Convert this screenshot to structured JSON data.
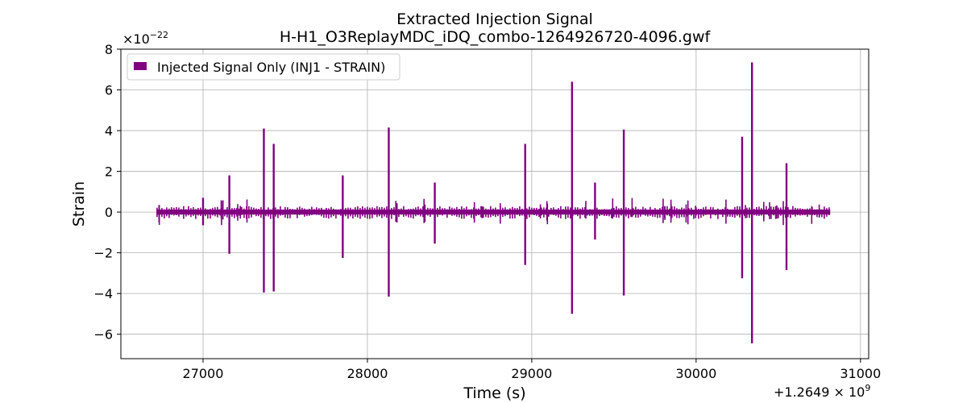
{
  "chart_data": {
    "type": "line",
    "title": "Extracted Injection Signal",
    "subtitle": "H-H1_O3ReplayMDC_iDQ_combo-1264926720-4096.gwf",
    "xlabel": "Time (s)",
    "ylabel": "Strain",
    "x_offset_label": "+1.2649 × 10^9",
    "y_scale_label": "×10^−22",
    "xlim": [
      26500,
      31050
    ],
    "ylim": [
      -7.2,
      8.0
    ],
    "x_ticks": [
      27000,
      28000,
      29000,
      30000,
      31000
    ],
    "x_tick_labels": [
      "27000",
      "28000",
      "29000",
      "30000",
      "31000"
    ],
    "y_ticks": [
      -6,
      -4,
      -2,
      0,
      2,
      4,
      6,
      8
    ],
    "y_tick_labels": [
      "−6",
      "−4",
      "−2",
      "0",
      "2",
      "4",
      "6",
      "8"
    ],
    "grid": true,
    "legend_position": "top-left",
    "color": "#800080",
    "series": [
      {
        "name": "Injected Signal Only (INJ1 - STRAIN)",
        "x_range": [
          26720,
          30816
        ],
        "baseline_noise": [
          -0.22,
          0.18
        ],
        "spikes": [
          {
            "x": 27000,
            "max": 0.7,
            "min": -0.65
          },
          {
            "x": 27160,
            "max": 1.8,
            "min": -2.05
          },
          {
            "x": 27370,
            "max": 4.1,
            "min": -3.95
          },
          {
            "x": 27430,
            "max": 3.35,
            "min": -3.9
          },
          {
            "x": 27850,
            "max": 1.8,
            "min": -2.25
          },
          {
            "x": 28130,
            "max": 4.15,
            "min": -4.15
          },
          {
            "x": 28410,
            "max": 1.45,
            "min": -1.55
          },
          {
            "x": 28960,
            "max": 3.35,
            "min": -2.6
          },
          {
            "x": 29245,
            "max": 6.4,
            "min": -5.0
          },
          {
            "x": 29385,
            "max": 1.45,
            "min": -1.35
          },
          {
            "x": 29560,
            "max": 4.05,
            "min": -4.1
          },
          {
            "x": 30280,
            "max": 3.7,
            "min": -3.25
          },
          {
            "x": 30340,
            "max": 7.35,
            "min": -6.45
          },
          {
            "x": 30550,
            "max": 2.4,
            "min": -2.85
          }
        ]
      }
    ]
  }
}
